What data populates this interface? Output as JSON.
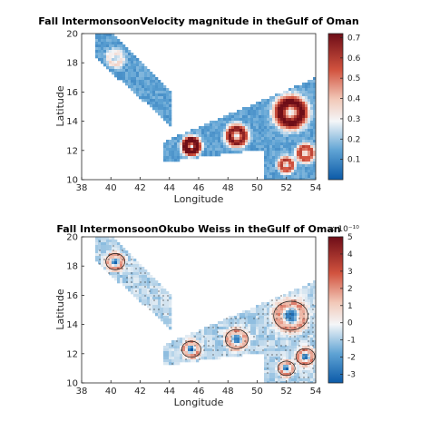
{
  "chart_data": [
    {
      "type": "heatmap",
      "title": "Fall IntermonsoonVelocity magnitude in theGulf of Oman",
      "xlabel": "Longitude",
      "ylabel": "Latitude",
      "xlim": [
        38,
        54
      ],
      "ylim": [
        10,
        20
      ],
      "xticks": [
        "38",
        "40",
        "42",
        "44",
        "46",
        "48",
        "50",
        "52",
        "54"
      ],
      "yticks": [
        "10",
        "12",
        "14",
        "16",
        "18",
        "20"
      ],
      "colorbar": {
        "min": 0,
        "max": 0.72,
        "ticks": [
          "0.1",
          "0.2",
          "0.3",
          "0.4",
          "0.5",
          "0.6",
          "0.7"
        ],
        "colormap": "blue-white-red"
      },
      "grid": false
    },
    {
      "type": "heatmap",
      "title": "Fall IntermonsoonOkubo Weiss in theGulf of Oman",
      "xlabel": "Longitude",
      "ylabel": "Latitude",
      "xlim": [
        38,
        54
      ],
      "ylim": [
        10,
        20
      ],
      "xticks": [
        "38",
        "40",
        "42",
        "44",
        "46",
        "48",
        "50",
        "52",
        "54"
      ],
      "yticks": [
        "10",
        "12",
        "14",
        "16",
        "18",
        "20"
      ],
      "colorbar": {
        "min": -3.5,
        "max": 5,
        "ticks": [
          "-3",
          "-2",
          "-1",
          "0",
          "1",
          "2",
          "3",
          "4",
          "5"
        ],
        "exponent": "× 10⁻¹⁰",
        "colormap": "blue-white-red"
      },
      "grid": false
    }
  ]
}
